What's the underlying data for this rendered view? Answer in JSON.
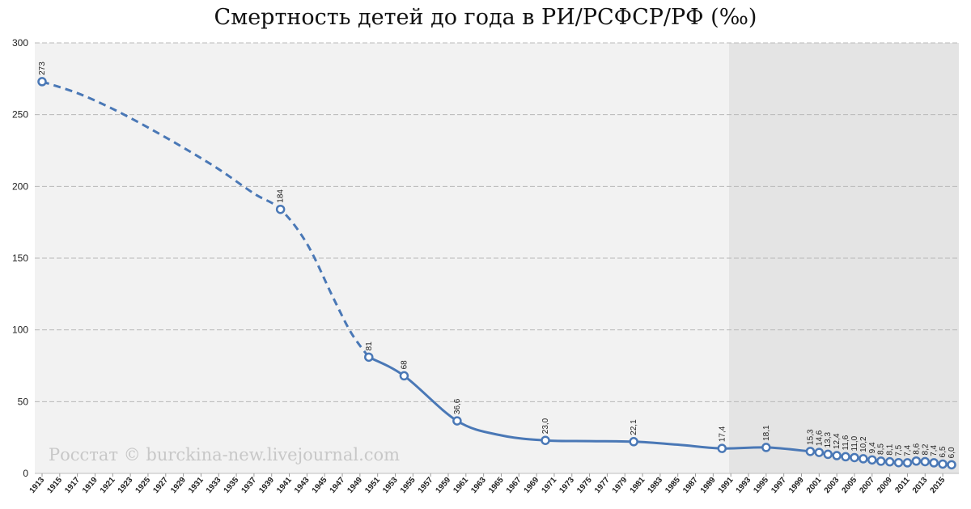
{
  "chart_data": {
    "type": "line",
    "title": "Смертность детей до года в РИ/РСФСР/РФ (‰)",
    "xlabel": "",
    "ylabel": "",
    "ylim": [
      0,
      300
    ],
    "yticks": [
      0,
      50,
      100,
      150,
      200,
      250,
      300
    ],
    "xlim": [
      1913,
      2016
    ],
    "xticks": [
      "1913",
      "1915",
      "1917",
      "1919",
      "1921",
      "1923",
      "1925",
      "1927",
      "1929",
      "1931",
      "1933",
      "1935",
      "1937",
      "1939",
      "1941",
      "1943",
      "1945",
      "1947",
      "1949",
      "1951",
      "1953",
      "1955",
      "1957",
      "1959",
      "1961",
      "1963",
      "1965",
      "1967",
      "1969",
      "1971",
      "1973",
      "1975",
      "1977",
      "1979",
      "1981",
      "1983",
      "1985",
      "1987",
      "1989",
      "1991",
      "1993",
      "1995",
      "1997",
      "1999",
      "2001",
      "2003",
      "2005",
      "2007",
      "2009",
      "2011",
      "2013",
      "2015"
    ],
    "grid": true,
    "shaded_region": [
      1990.8,
      2016
    ],
    "colors": {
      "line": "#4a78b6",
      "marker_fill": "#ffffff",
      "plot_bg": "#f2f2f2",
      "shade_bg": "#e4e4e4"
    },
    "series": [
      {
        "line_style": "dashed",
        "x": [
          1913,
          1917,
          1921,
          1925,
          1929,
          1933,
          1937,
          1940,
          1943,
          1946,
          1948,
          1950
        ],
        "values": [
          273,
          265,
          254,
          241,
          227,
          212,
          195,
          184,
          160,
          122,
          98,
          81
        ]
      },
      {
        "line_style": "solid",
        "x": [
          1950,
          1954,
          1960,
          1965,
          1970,
          1975,
          1980,
          1985,
          1990,
          1995,
          2000,
          2001,
          2002,
          2003,
          2004,
          2005,
          2006,
          2007,
          2008,
          2009,
          2010,
          2011,
          2012,
          2013,
          2014,
          2015,
          2016
        ],
        "values": [
          81,
          68,
          36.6,
          26.5,
          23.0,
          22.5,
          22.1,
          20.0,
          17.4,
          18.1,
          15.3,
          14.6,
          13.3,
          12.4,
          11.6,
          11.0,
          10.2,
          9.4,
          8.5,
          8.1,
          7.5,
          7.4,
          8.6,
          8.2,
          7.4,
          6.5,
          6.0
        ]
      }
    ],
    "points": [
      {
        "x": 1913,
        "y": 273,
        "label": "273"
      },
      {
        "x": 1940,
        "y": 184,
        "label": "184"
      },
      {
        "x": 1950,
        "y": 81,
        "label": "81"
      },
      {
        "x": 1954,
        "y": 68,
        "label": "68"
      },
      {
        "x": 1960,
        "y": 36.6,
        "label": "36,6"
      },
      {
        "x": 1970,
        "y": 23.0,
        "label": "23,0"
      },
      {
        "x": 1980,
        "y": 22.1,
        "label": "22,1"
      },
      {
        "x": 1990,
        "y": 17.4,
        "label": "17,4"
      },
      {
        "x": 1995,
        "y": 18.1,
        "label": "18,1"
      },
      {
        "x": 2000,
        "y": 15.3,
        "label": "15,3"
      },
      {
        "x": 2001,
        "y": 14.6,
        "label": "14,6"
      },
      {
        "x": 2002,
        "y": 13.3,
        "label": "13,3"
      },
      {
        "x": 2003,
        "y": 12.4,
        "label": "12,4"
      },
      {
        "x": 2004,
        "y": 11.6,
        "label": "11,6"
      },
      {
        "x": 2005,
        "y": 11.0,
        "label": "11,0"
      },
      {
        "x": 2006,
        "y": 10.2,
        "label": "10,2"
      },
      {
        "x": 2007,
        "y": 9.4,
        "label": "9,4"
      },
      {
        "x": 2008,
        "y": 8.5,
        "label": "8,5"
      },
      {
        "x": 2009,
        "y": 8.1,
        "label": "8,1"
      },
      {
        "x": 2010,
        "y": 7.5,
        "label": "7,5"
      },
      {
        "x": 2011,
        "y": 7.4,
        "label": "7,4"
      },
      {
        "x": 2012,
        "y": 8.6,
        "label": "8,6"
      },
      {
        "x": 2013,
        "y": 8.2,
        "label": "8,2"
      },
      {
        "x": 2014,
        "y": 7.4,
        "label": "7,4"
      },
      {
        "x": 2015,
        "y": 6.5,
        "label": "6,5"
      },
      {
        "x": 2016,
        "y": 6.0,
        "label": "6,0"
      }
    ]
  },
  "watermark": "Росстат © burckina-new.livejournal.com"
}
